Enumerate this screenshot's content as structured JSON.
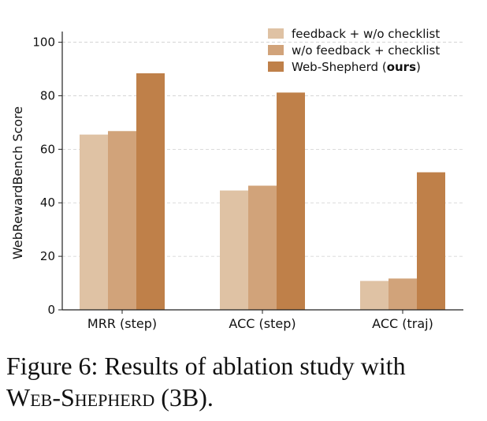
{
  "chart_data": {
    "type": "bar",
    "title": "",
    "xlabel": "",
    "ylabel": "WebRewardBench Score",
    "ylim": [
      0,
      104
    ],
    "yticks": [
      "0",
      "20",
      "40",
      "60",
      "80",
      "100"
    ],
    "ytick_values": [
      0,
      20,
      40,
      60,
      80,
      100
    ],
    "grid": "horizontal-dashed",
    "legend_position": "top-right",
    "categories": [
      "MRR (step)",
      "ACC (step)",
      "ACC (traj)"
    ],
    "series": [
      {
        "name": "feedback + w/o checklist",
        "color": "#dfc2a4",
        "values": [
          65.5,
          44.6,
          10.8
        ]
      },
      {
        "name": "w/o feedback + checklist",
        "color": "#d1a37a",
        "values": [
          66.8,
          46.4,
          11.7
        ]
      },
      {
        "name": "Web-Shepherd (ours)",
        "legend_prefix": "Web-Shepherd (",
        "legend_bold": "ours",
        "legend_suffix": ")",
        "color": "#bf8049",
        "values": [
          88.4,
          81.2,
          51.4
        ]
      }
    ]
  },
  "caption": {
    "prefix": "Figure 6: Results of ablation study with",
    "model_name": "Web-Shepherd",
    "suffix": " (3B)."
  }
}
